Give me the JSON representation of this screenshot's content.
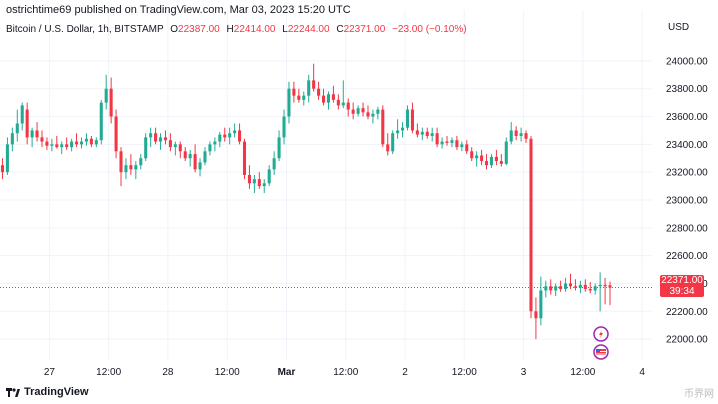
{
  "header": {
    "text": "ostrichtime69 published on TradingView.com, Mar 03, 2023 15:20 UTC"
  },
  "legend": {
    "symbol": "Bitcoin / U.S. Dollar, 1h, BITSTAMP",
    "open_label": "O",
    "open": "22387.00",
    "high_label": "H",
    "high": "22414.00",
    "low_label": "L",
    "low": "22244.00",
    "close_label": "C",
    "close": "22371.00",
    "change": "−23.00 (−0.10%)"
  },
  "price_tag": {
    "price": "22371.00",
    "countdown": "39:34"
  },
  "footer": {
    "brand": "TradingView"
  },
  "watermark": "币界网",
  "colors": {
    "up": "#22ab94",
    "down": "#f23645",
    "grid": "#f0f3fa",
    "axis_text": "#131722"
  },
  "chart_data": {
    "type": "candlestick",
    "title": "Bitcoin / U.S. Dollar, 1h, BITSTAMP",
    "currency": "USD",
    "y_ticks": [
      22000,
      22200,
      22400,
      22600,
      22800,
      23000,
      23200,
      23400,
      23600,
      23800,
      24000
    ],
    "y_tick_labels": [
      "22000.00",
      "22200.00",
      "22400.00",
      "22600.00",
      "22800.00",
      "23000.00",
      "23200.00",
      "23400.00",
      "23600.00",
      "23800.00",
      "24000.00"
    ],
    "ylim": [
      21850,
      24150
    ],
    "x_tick_labels": [
      "27",
      "12:00",
      "28",
      "12:00",
      "Mar",
      "12:00",
      "2",
      "12:00",
      "3",
      "12:00",
      "4"
    ],
    "x_tick_hours": [
      10,
      22,
      34,
      46,
      58,
      70,
      82,
      94,
      106,
      118,
      130
    ],
    "xlim": [
      0,
      132
    ],
    "last_price": 22371,
    "candles": [
      {
        "t": 0,
        "o": 23250,
        "h": 23300,
        "l": 23150,
        "c": 23200
      },
      {
        "t": 1,
        "o": 23200,
        "h": 23450,
        "l": 23180,
        "c": 23400
      },
      {
        "t": 2,
        "o": 23400,
        "h": 23520,
        "l": 23350,
        "c": 23480
      },
      {
        "t": 3,
        "o": 23480,
        "h": 23650,
        "l": 23420,
        "c": 23550
      },
      {
        "t": 4,
        "o": 23550,
        "h": 23700,
        "l": 23500,
        "c": 23680
      },
      {
        "t": 5,
        "o": 23650,
        "h": 23700,
        "l": 23400,
        "c": 23450
      },
      {
        "t": 6,
        "o": 23450,
        "h": 23520,
        "l": 23380,
        "c": 23500
      },
      {
        "t": 7,
        "o": 23500,
        "h": 23560,
        "l": 23420,
        "c": 23450
      },
      {
        "t": 8,
        "o": 23450,
        "h": 23500,
        "l": 23380,
        "c": 23420
      },
      {
        "t": 9,
        "o": 23420,
        "h": 23450,
        "l": 23360,
        "c": 23390
      },
      {
        "t": 10,
        "o": 23390,
        "h": 23440,
        "l": 23350,
        "c": 23400
      },
      {
        "t": 11,
        "o": 23400,
        "h": 23460,
        "l": 23370,
        "c": 23380
      },
      {
        "t": 12,
        "o": 23380,
        "h": 23420,
        "l": 23330,
        "c": 23400
      },
      {
        "t": 13,
        "o": 23400,
        "h": 23450,
        "l": 23360,
        "c": 23380
      },
      {
        "t": 14,
        "o": 23380,
        "h": 23440,
        "l": 23350,
        "c": 23420
      },
      {
        "t": 15,
        "o": 23420,
        "h": 23480,
        "l": 23380,
        "c": 23400
      },
      {
        "t": 16,
        "o": 23400,
        "h": 23450,
        "l": 23370,
        "c": 23420
      },
      {
        "t": 17,
        "o": 23420,
        "h": 23480,
        "l": 23390,
        "c": 23440
      },
      {
        "t": 18,
        "o": 23440,
        "h": 23460,
        "l": 23380,
        "c": 23400
      },
      {
        "t": 19,
        "o": 23400,
        "h": 23450,
        "l": 23380,
        "c": 23430
      },
      {
        "t": 20,
        "o": 23430,
        "h": 23720,
        "l": 23400,
        "c": 23700
      },
      {
        "t": 21,
        "o": 23700,
        "h": 23900,
        "l": 23650,
        "c": 23800
      },
      {
        "t": 22,
        "o": 23800,
        "h": 23880,
        "l": 23550,
        "c": 23600
      },
      {
        "t": 23,
        "o": 23600,
        "h": 23650,
        "l": 23300,
        "c": 23350
      },
      {
        "t": 24,
        "o": 23350,
        "h": 23380,
        "l": 23100,
        "c": 23200
      },
      {
        "t": 25,
        "o": 23200,
        "h": 23300,
        "l": 23150,
        "c": 23250
      },
      {
        "t": 26,
        "o": 23250,
        "h": 23330,
        "l": 23180,
        "c": 23220
      },
      {
        "t": 27,
        "o": 23220,
        "h": 23280,
        "l": 23150,
        "c": 23250
      },
      {
        "t": 28,
        "o": 23250,
        "h": 23330,
        "l": 23220,
        "c": 23300
      },
      {
        "t": 29,
        "o": 23300,
        "h": 23480,
        "l": 23280,
        "c": 23450
      },
      {
        "t": 30,
        "o": 23450,
        "h": 23520,
        "l": 23380,
        "c": 23480
      },
      {
        "t": 31,
        "o": 23480,
        "h": 23520,
        "l": 23400,
        "c": 23420
      },
      {
        "t": 32,
        "o": 23420,
        "h": 23480,
        "l": 23360,
        "c": 23450
      },
      {
        "t": 33,
        "o": 23450,
        "h": 23500,
        "l": 23400,
        "c": 23430
      },
      {
        "t": 34,
        "o": 23430,
        "h": 23480,
        "l": 23350,
        "c": 23380
      },
      {
        "t": 35,
        "o": 23380,
        "h": 23420,
        "l": 23320,
        "c": 23400
      },
      {
        "t": 36,
        "o": 23400,
        "h": 23420,
        "l": 23300,
        "c": 23350
      },
      {
        "t": 37,
        "o": 23350,
        "h": 23380,
        "l": 23280,
        "c": 23300
      },
      {
        "t": 38,
        "o": 23300,
        "h": 23360,
        "l": 23240,
        "c": 23330
      },
      {
        "t": 39,
        "o": 23330,
        "h": 23400,
        "l": 23200,
        "c": 23220
      },
      {
        "t": 40,
        "o": 23220,
        "h": 23300,
        "l": 23170,
        "c": 23270
      },
      {
        "t": 41,
        "o": 23270,
        "h": 23380,
        "l": 23250,
        "c": 23350
      },
      {
        "t": 42,
        "o": 23350,
        "h": 23420,
        "l": 23320,
        "c": 23400
      },
      {
        "t": 43,
        "o": 23400,
        "h": 23450,
        "l": 23350,
        "c": 23420
      },
      {
        "t": 44,
        "o": 23420,
        "h": 23490,
        "l": 23380,
        "c": 23470
      },
      {
        "t": 45,
        "o": 23470,
        "h": 23520,
        "l": 23420,
        "c": 23450
      },
      {
        "t": 46,
        "o": 23450,
        "h": 23520,
        "l": 23400,
        "c": 23480
      },
      {
        "t": 47,
        "o": 23480,
        "h": 23550,
        "l": 23450,
        "c": 23500
      },
      {
        "t": 48,
        "o": 23500,
        "h": 23550,
        "l": 23400,
        "c": 23420
      },
      {
        "t": 49,
        "o": 23420,
        "h": 23440,
        "l": 23150,
        "c": 23180
      },
      {
        "t": 50,
        "o": 23180,
        "h": 23250,
        "l": 23080,
        "c": 23120
      },
      {
        "t": 51,
        "o": 23120,
        "h": 23180,
        "l": 23050,
        "c": 23150
      },
      {
        "t": 52,
        "o": 23150,
        "h": 23200,
        "l": 23080,
        "c": 23100
      },
      {
        "t": 53,
        "o": 23100,
        "h": 23150,
        "l": 23050,
        "c": 23120
      },
      {
        "t": 54,
        "o": 23120,
        "h": 23250,
        "l": 23100,
        "c": 23220
      },
      {
        "t": 55,
        "o": 23220,
        "h": 23350,
        "l": 23180,
        "c": 23300
      },
      {
        "t": 56,
        "o": 23300,
        "h": 23500,
        "l": 23280,
        "c": 23450
      },
      {
        "t": 57,
        "o": 23450,
        "h": 23650,
        "l": 23400,
        "c": 23600
      },
      {
        "t": 58,
        "o": 23600,
        "h": 23850,
        "l": 23550,
        "c": 23800
      },
      {
        "t": 59,
        "o": 23800,
        "h": 23850,
        "l": 23700,
        "c": 23750
      },
      {
        "t": 60,
        "o": 23750,
        "h": 23800,
        "l": 23700,
        "c": 23720
      },
      {
        "t": 61,
        "o": 23720,
        "h": 23780,
        "l": 23680,
        "c": 23750
      },
      {
        "t": 62,
        "o": 23750,
        "h": 23900,
        "l": 23700,
        "c": 23860
      },
      {
        "t": 63,
        "o": 23860,
        "h": 23980,
        "l": 23780,
        "c": 23800
      },
      {
        "t": 64,
        "o": 23800,
        "h": 23850,
        "l": 23720,
        "c": 23750
      },
      {
        "t": 65,
        "o": 23750,
        "h": 23800,
        "l": 23680,
        "c": 23700
      },
      {
        "t": 66,
        "o": 23700,
        "h": 23780,
        "l": 23650,
        "c": 23760
      },
      {
        "t": 67,
        "o": 23760,
        "h": 23820,
        "l": 23700,
        "c": 23720
      },
      {
        "t": 68,
        "o": 23720,
        "h": 23760,
        "l": 23650,
        "c": 23680
      },
      {
        "t": 69,
        "o": 23680,
        "h": 23860,
        "l": 23660,
        "c": 23700
      },
      {
        "t": 70,
        "o": 23700,
        "h": 23730,
        "l": 23600,
        "c": 23650
      },
      {
        "t": 71,
        "o": 23650,
        "h": 23700,
        "l": 23580,
        "c": 23620
      },
      {
        "t": 72,
        "o": 23620,
        "h": 23680,
        "l": 23600,
        "c": 23660
      },
      {
        "t": 73,
        "o": 23660,
        "h": 23700,
        "l": 23600,
        "c": 23630
      },
      {
        "t": 74,
        "o": 23630,
        "h": 23680,
        "l": 23580,
        "c": 23600
      },
      {
        "t": 75,
        "o": 23600,
        "h": 23650,
        "l": 23550,
        "c": 23620
      },
      {
        "t": 76,
        "o": 23620,
        "h": 23670,
        "l": 23580,
        "c": 23650
      },
      {
        "t": 77,
        "o": 23650,
        "h": 23680,
        "l": 23380,
        "c": 23400
      },
      {
        "t": 78,
        "o": 23400,
        "h": 23480,
        "l": 23320,
        "c": 23350
      },
      {
        "t": 79,
        "o": 23350,
        "h": 23500,
        "l": 23330,
        "c": 23480
      },
      {
        "t": 80,
        "o": 23480,
        "h": 23580,
        "l": 23440,
        "c": 23500
      },
      {
        "t": 81,
        "o": 23500,
        "h": 23560,
        "l": 23450,
        "c": 23520
      },
      {
        "t": 82,
        "o": 23520,
        "h": 23680,
        "l": 23500,
        "c": 23650
      },
      {
        "t": 83,
        "o": 23650,
        "h": 23700,
        "l": 23480,
        "c": 23500
      },
      {
        "t": 84,
        "o": 23500,
        "h": 23550,
        "l": 23450,
        "c": 23470
      },
      {
        "t": 85,
        "o": 23470,
        "h": 23520,
        "l": 23430,
        "c": 23490
      },
      {
        "t": 86,
        "o": 23490,
        "h": 23520,
        "l": 23440,
        "c": 23460
      },
      {
        "t": 87,
        "o": 23460,
        "h": 23520,
        "l": 23420,
        "c": 23480
      },
      {
        "t": 88,
        "o": 23480,
        "h": 23520,
        "l": 23380,
        "c": 23400
      },
      {
        "t": 89,
        "o": 23400,
        "h": 23450,
        "l": 23370,
        "c": 23420
      },
      {
        "t": 90,
        "o": 23420,
        "h": 23460,
        "l": 23390,
        "c": 23410
      },
      {
        "t": 91,
        "o": 23410,
        "h": 23450,
        "l": 23380,
        "c": 23430
      },
      {
        "t": 92,
        "o": 23430,
        "h": 23460,
        "l": 23360,
        "c": 23380
      },
      {
        "t": 93,
        "o": 23380,
        "h": 23420,
        "l": 23350,
        "c": 23400
      },
      {
        "t": 94,
        "o": 23400,
        "h": 23430,
        "l": 23330,
        "c": 23350
      },
      {
        "t": 95,
        "o": 23350,
        "h": 23380,
        "l": 23280,
        "c": 23300
      },
      {
        "t": 96,
        "o": 23300,
        "h": 23350,
        "l": 23240,
        "c": 23320
      },
      {
        "t": 97,
        "o": 23320,
        "h": 23360,
        "l": 23250,
        "c": 23280
      },
      {
        "t": 98,
        "o": 23280,
        "h": 23330,
        "l": 23220,
        "c": 23250
      },
      {
        "t": 99,
        "o": 23250,
        "h": 23330,
        "l": 23230,
        "c": 23310
      },
      {
        "t": 100,
        "o": 23310,
        "h": 23360,
        "l": 23250,
        "c": 23280
      },
      {
        "t": 101,
        "o": 23280,
        "h": 23330,
        "l": 23240,
        "c": 23260
      },
      {
        "t": 102,
        "o": 23260,
        "h": 23450,
        "l": 23250,
        "c": 23420
      },
      {
        "t": 103,
        "o": 23420,
        "h": 23560,
        "l": 23400,
        "c": 23500
      },
      {
        "t": 104,
        "o": 23500,
        "h": 23530,
        "l": 23430,
        "c": 23460
      },
      {
        "t": 105,
        "o": 23460,
        "h": 23520,
        "l": 23420,
        "c": 23480
      },
      {
        "t": 106,
        "o": 23480,
        "h": 23500,
        "l": 23410,
        "c": 23440
      },
      {
        "t": 107,
        "o": 23440,
        "h": 23460,
        "l": 22150,
        "c": 22200
      },
      {
        "t": 108,
        "o": 22200,
        "h": 22300,
        "l": 22000,
        "c": 22150
      },
      {
        "t": 109,
        "o": 22150,
        "h": 22450,
        "l": 22100,
        "c": 22350
      },
      {
        "t": 110,
        "o": 22350,
        "h": 22420,
        "l": 22300,
        "c": 22380
      },
      {
        "t": 111,
        "o": 22380,
        "h": 22430,
        "l": 22320,
        "c": 22350
      },
      {
        "t": 112,
        "o": 22350,
        "h": 22400,
        "l": 22310,
        "c": 22380
      },
      {
        "t": 113,
        "o": 22380,
        "h": 22420,
        "l": 22340,
        "c": 22360
      },
      {
        "t": 114,
        "o": 22360,
        "h": 22440,
        "l": 22340,
        "c": 22400
      },
      {
        "t": 115,
        "o": 22400,
        "h": 22470,
        "l": 22360,
        "c": 22380
      },
      {
        "t": 116,
        "o": 22380,
        "h": 22430,
        "l": 22350,
        "c": 22370
      },
      {
        "t": 117,
        "o": 22370,
        "h": 22420,
        "l": 22330,
        "c": 22390
      },
      {
        "t": 118,
        "o": 22390,
        "h": 22430,
        "l": 22340,
        "c": 22360
      },
      {
        "t": 119,
        "o": 22360,
        "h": 22410,
        "l": 22330,
        "c": 22350
      },
      {
        "t": 120,
        "o": 22350,
        "h": 22400,
        "l": 22320,
        "c": 22380
      },
      {
        "t": 121,
        "o": 22380,
        "h": 22480,
        "l": 22200,
        "c": 22390
      },
      {
        "t": 122,
        "o": 22390,
        "h": 22440,
        "l": 22250,
        "c": 22380
      },
      {
        "t": 123,
        "o": 22387,
        "h": 22414,
        "l": 22244,
        "c": 22371
      }
    ]
  }
}
